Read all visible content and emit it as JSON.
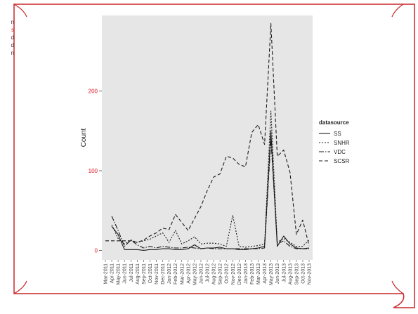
{
  "left_margin_text": [
    "n",
    "s",
    "d",
    "d",
    "n"
  ],
  "colors": {
    "frame": "#c8262b",
    "panel": "#e6e6e6",
    "y_tick_label": "#e0141e",
    "series": "#1a1a1a"
  },
  "chart_data": {
    "type": "line",
    "title": "",
    "xlabel": "",
    "ylabel": "Count",
    "ylim": [
      -12,
      295
    ],
    "yticks": [
      0,
      100,
      200
    ],
    "grid": false,
    "legend": {
      "title": "datasource",
      "position": "right"
    },
    "x": [
      "Mar-2011",
      "Apr-2011",
      "May-2011",
      "Jun-2011",
      "Jul-2011",
      "Aug-2011",
      "Sep-2011",
      "Oct-2011",
      "Nov-2011",
      "Dec-2011",
      "Jan-2012",
      "Feb-2012",
      "Mar-2012",
      "Apr-2012",
      "May-2012",
      "Jun-2012",
      "Jul-2012",
      "Aug-2012",
      "Sep-2012",
      "Oct-2012",
      "Nov-2012",
      "Dec-2012",
      "Jan-2013",
      "Feb-2013",
      "Mar-2013",
      "Apr-2013",
      "May-2013",
      "Jun-2013",
      "Jul-2013",
      "Aug-2013",
      "Sep-2013",
      "Oct-2013",
      "Nov-2013"
    ],
    "series": [
      {
        "name": "SS",
        "dash": "",
        "values": [
          null,
          30,
          20,
          1,
          1,
          1,
          0,
          1,
          1,
          2,
          2,
          1,
          1,
          2,
          7,
          2,
          3,
          3,
          4,
          2,
          2,
          1,
          1,
          2,
          3,
          5,
          150,
          5,
          18,
          8,
          3,
          2,
          3
        ]
      },
      {
        "name": "SNHR",
        "dash": "2,2",
        "values": [
          null,
          32,
          15,
          8,
          13,
          10,
          12,
          14,
          18,
          22,
          10,
          25,
          8,
          12,
          17,
          8,
          9,
          9,
          8,
          5,
          44,
          5,
          4,
          5,
          6,
          8,
          175,
          10,
          15,
          10,
          5,
          5,
          13
        ]
      },
      {
        "name": "VDC",
        "dash": "7,2,1.5,2",
        "values": [
          null,
          43,
          25,
          5,
          13,
          7,
          3,
          5,
          3,
          5,
          4,
          3,
          3,
          4,
          3,
          2,
          3,
          2,
          2,
          2,
          2,
          2,
          2,
          2,
          2,
          3,
          140,
          8,
          12,
          5,
          2,
          2,
          2
        ]
      },
      {
        "name": "SCSR",
        "dash": "5,3",
        "values": [
          12,
          12,
          12,
          12,
          12,
          10,
          13,
          18,
          22,
          28,
          26,
          45,
          35,
          25,
          40,
          55,
          75,
          92,
          96,
          118,
          116,
          108,
          105,
          148,
          158,
          133,
          285,
          118,
          126,
          98,
          20,
          38,
          6
        ]
      }
    ]
  }
}
